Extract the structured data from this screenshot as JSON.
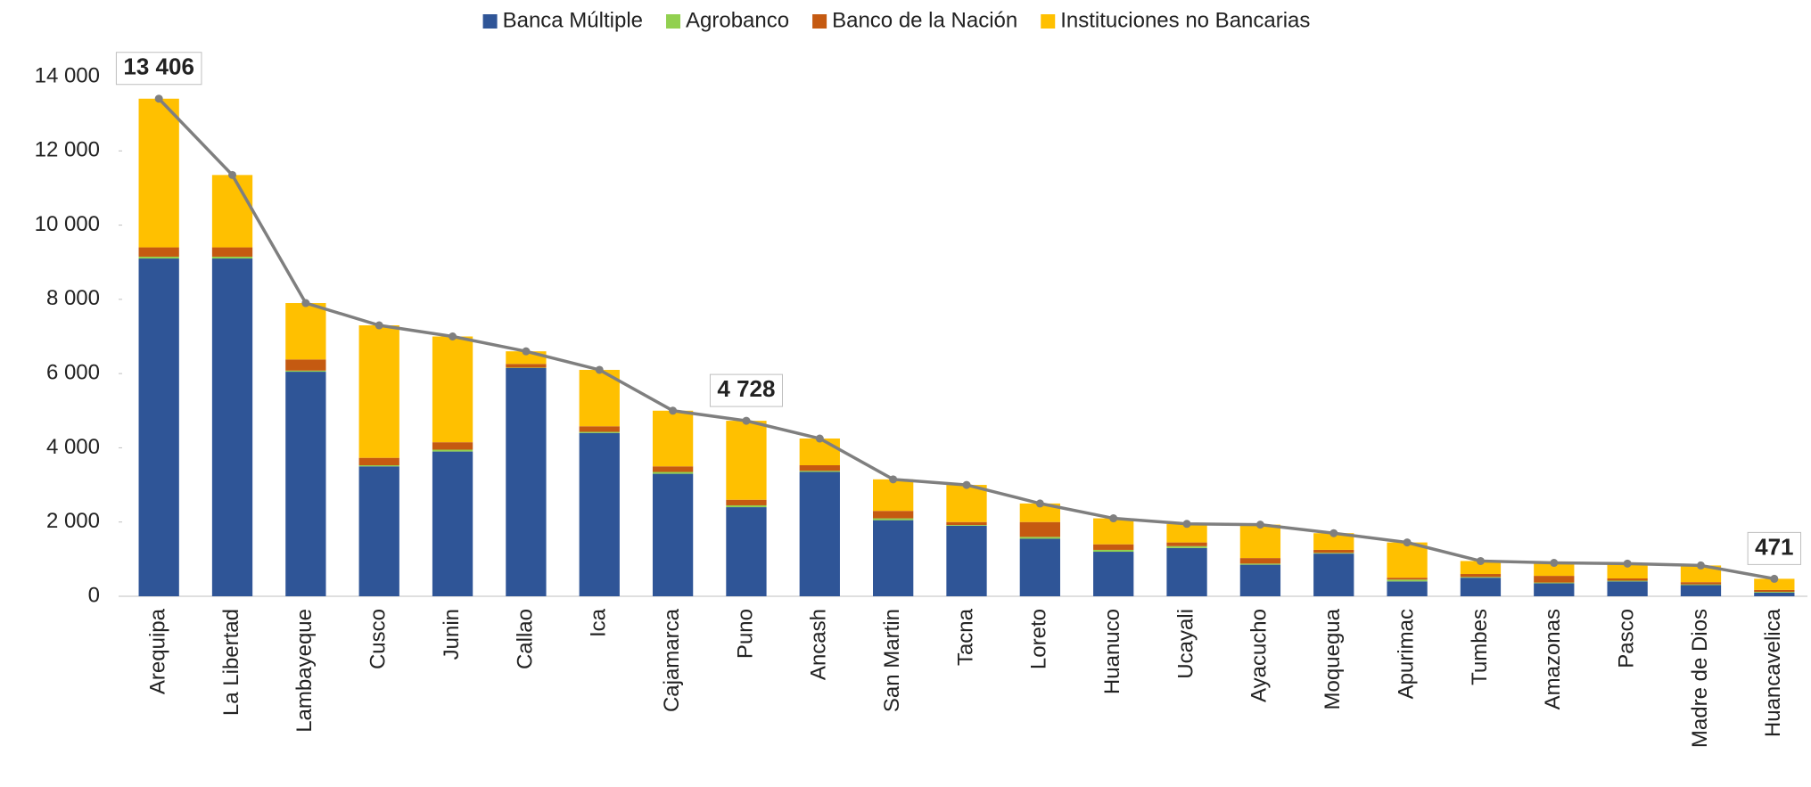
{
  "chart_data": {
    "type": "bar",
    "stacked": true,
    "categories": [
      "Arequipa",
      "La Libertad",
      "Lambayeque",
      "Cusco",
      "Junin",
      "Callao",
      "Ica",
      "Cajamarca",
      "Puno",
      "Ancash",
      "San Martin",
      "Tacna",
      "Loreto",
      "Huanuco",
      "Ucayali",
      "Ayacucho",
      "Moquegua",
      "Apurimac",
      "Tumbes",
      "Amazonas",
      "Pasco",
      "Madre de Dios",
      "Huancavelica"
    ],
    "series": [
      {
        "name": "Banca Múltiple",
        "color": "#2f5597",
        "values": [
          9100,
          9100,
          6050,
          3500,
          3900,
          6150,
          4400,
          3300,
          2400,
          3350,
          2050,
          1900,
          1550,
          1200,
          1300,
          850,
          1150,
          400,
          500,
          350,
          400,
          300,
          100
        ]
      },
      {
        "name": "Agrobanco",
        "color": "#92d050",
        "values": [
          50,
          50,
          30,
          30,
          50,
          10,
          30,
          50,
          50,
          30,
          50,
          20,
          50,
          50,
          50,
          30,
          20,
          50,
          20,
          20,
          20,
          20,
          20
        ]
      },
      {
        "name": "Banco de la Nación",
        "color": "#c55a11",
        "values": [
          250,
          250,
          300,
          200,
          200,
          100,
          150,
          150,
          150,
          150,
          200,
          80,
          400,
          150,
          100,
          150,
          80,
          50,
          80,
          180,
          60,
          60,
          50
        ]
      },
      {
        "name": "Instituciones no Bancarias",
        "color": "#ffc000",
        "values": [
          4006,
          1950,
          1520,
          3570,
          2850,
          340,
          1520,
          1500,
          2128,
          720,
          850,
          1000,
          500,
          700,
          500,
          900,
          450,
          950,
          350,
          350,
          400,
          450,
          301
        ]
      }
    ],
    "line": {
      "color": "#7f7f7f",
      "values": [
        13406,
        11350,
        7900,
        7300,
        7000,
        6600,
        6100,
        5000,
        4728,
        4250,
        3150,
        3000,
        2500,
        2100,
        1950,
        1930,
        1700,
        1450,
        950,
        900,
        880,
        830,
        471
      ],
      "value_labels": [
        "13 406",
        null,
        null,
        null,
        null,
        null,
        null,
        null,
        "4 728",
        null,
        null,
        null,
        null,
        null,
        null,
        null,
        null,
        null,
        null,
        null,
        null,
        null,
        "471"
      ]
    },
    "ylim": [
      0,
      14000
    ],
    "yticks": [
      0,
      {
        "value": 2000,
        "label": "2 000"
      },
      {
        "value": 4000,
        "label": "4 000"
      },
      {
        "value": 6000,
        "label": "6 000"
      },
      {
        "value": 8000,
        "label": "8 000"
      },
      {
        "value": 10000,
        "label": "10 000"
      },
      {
        "value": 12000,
        "label": "12 000"
      },
      {
        "value": 14000,
        "label": "14 000"
      }
    ],
    "grid": false,
    "legend": "top"
  }
}
